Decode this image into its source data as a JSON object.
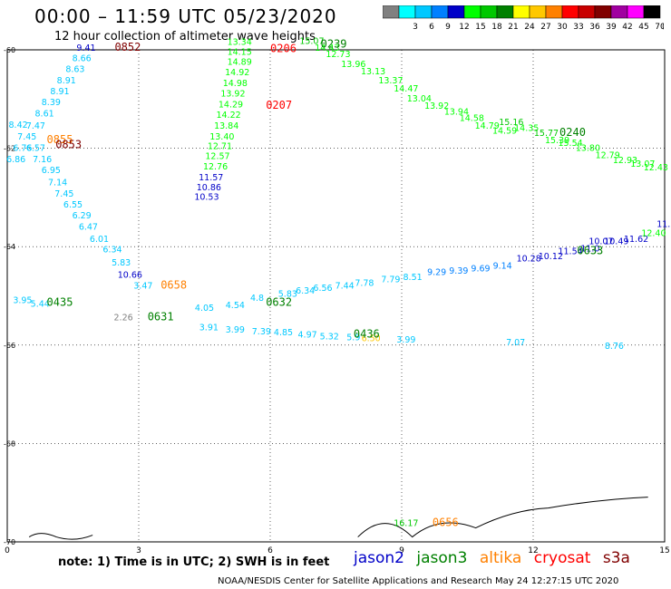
{
  "header": {
    "title": "00:00 – 11:59 UTC 05/23/2020",
    "subtitle": "12 hour collection of altimeter wave heights"
  },
  "legend": {
    "unit": "(ft)",
    "bins": [
      {
        "label": "",
        "color": "#808080"
      },
      {
        "label": "3",
        "color": "#00ffff"
      },
      {
        "label": "6",
        "color": "#00c8ff"
      },
      {
        "label": "9",
        "color": "#0080ff"
      },
      {
        "label": "12",
        "color": "#0000c8"
      },
      {
        "label": "15",
        "color": "#00ff00"
      },
      {
        "label": "18",
        "color": "#00c800"
      },
      {
        "label": "21",
        "color": "#008000"
      },
      {
        "label": "24",
        "color": "#ffff00"
      },
      {
        "label": "27",
        "color": "#ffc800"
      },
      {
        "label": "30",
        "color": "#ff8000"
      },
      {
        "label": "33",
        "color": "#ff0000"
      },
      {
        "label": "36",
        "color": "#c80000"
      },
      {
        "label": "39",
        "color": "#800000"
      },
      {
        "label": "42",
        "color": "#a000a0"
      },
      {
        "label": "45",
        "color": "#ff00ff"
      },
      {
        "label": "70",
        "color": "#000000"
      }
    ]
  },
  "footer": {
    "note": "note: 1) Time is in UTC; 2) SWH is in feet",
    "satellites": [
      {
        "name": "jason2",
        "color": "#0000c8"
      },
      {
        "name": "jason3",
        "color": "#008000"
      },
      {
        "name": "altika",
        "color": "#ff8000"
      },
      {
        "name": "cryosat",
        "color": "#ff0000"
      },
      {
        "name": "s3a",
        "color": "#800000"
      }
    ],
    "credit": "NOAA/NESDIS Center for Satellite Applications and Research    May 24 12:27:15 UTC 2020"
  },
  "chart_data": {
    "type": "scatter",
    "xlabel": "",
    "ylabel": "",
    "xlim": [
      0,
      15
    ],
    "ylim": [
      -70,
      -60
    ],
    "x_ticks": [
      "0",
      "3",
      "6",
      "9",
      "12",
      "15"
    ],
    "y_ticks": [
      "-60",
      "-62",
      "-64",
      "-66",
      "-68",
      "-70"
    ],
    "grid": true,
    "points": [
      {
        "x": 1.8,
        "y": -60.02,
        "t": "9.41",
        "c": "#0000c8"
      },
      {
        "x": 1.7,
        "y": -60.23,
        "t": "8.66",
        "c": "#00c8ff"
      },
      {
        "x": 1.55,
        "y": -60.45,
        "t": "8.63",
        "c": "#00c8ff"
      },
      {
        "x": 1.35,
        "y": -60.68,
        "t": "8.91",
        "c": "#00c8ff"
      },
      {
        "x": 1.2,
        "y": -60.9,
        "t": "8.91",
        "c": "#00c8ff"
      },
      {
        "x": 1.0,
        "y": -61.12,
        "t": "8.39",
        "c": "#00c8ff"
      },
      {
        "x": 0.85,
        "y": -61.35,
        "t": "8.61",
        "c": "#00c8ff"
      },
      {
        "x": 0.25,
        "y": -61.58,
        "t": "8.42",
        "c": "#00c8ff"
      },
      {
        "x": 0.65,
        "y": -61.6,
        "t": "7.47",
        "c": "#00c8ff"
      },
      {
        "x": 0.45,
        "y": -61.82,
        "t": "7.45",
        "c": "#00c8ff"
      },
      {
        "x": 0.35,
        "y": -62.05,
        "t": "6.76",
        "c": "#00c8ff"
      },
      {
        "x": 0.65,
        "y": -62.05,
        "t": "6.57",
        "c": "#00c8ff"
      },
      {
        "x": 0.2,
        "y": -62.28,
        "t": "6.86",
        "c": "#00c8ff"
      },
      {
        "x": 0.8,
        "y": -62.28,
        "t": "7.16",
        "c": "#00c8ff"
      },
      {
        "x": 1.0,
        "y": -62.5,
        "t": "6.95",
        "c": "#00c8ff"
      },
      {
        "x": 1.15,
        "y": -62.75,
        "t": "7.14",
        "c": "#00c8ff"
      },
      {
        "x": 1.3,
        "y": -62.98,
        "t": "7.45",
        "c": "#00c8ff"
      },
      {
        "x": 1.5,
        "y": -63.2,
        "t": "6.55",
        "c": "#00c8ff"
      },
      {
        "x": 1.7,
        "y": -63.43,
        "t": "6.29",
        "c": "#00c8ff"
      },
      {
        "x": 1.85,
        "y": -63.66,
        "t": "6.47",
        "c": "#00c8ff"
      },
      {
        "x": 2.1,
        "y": -63.9,
        "t": "6.01",
        "c": "#00c8ff"
      },
      {
        "x": 2.4,
        "y": -64.12,
        "t": "6.34",
        "c": "#00c8ff"
      },
      {
        "x": 2.6,
        "y": -64.38,
        "t": "5.83",
        "c": "#00c8ff"
      },
      {
        "x": 2.8,
        "y": -64.63,
        "t": "10.66",
        "c": "#0000c8"
      },
      {
        "x": 3.1,
        "y": -64.85,
        "t": "3.47",
        "c": "#00c8ff"
      },
      {
        "x": 0.35,
        "y": -65.15,
        "t": "3.95",
        "c": "#00c8ff"
      },
      {
        "x": 0.75,
        "y": -65.22,
        "t": "5.44",
        "c": "#00c8ff"
      },
      {
        "x": 2.65,
        "y": -65.5,
        "t": "2.26",
        "c": "#808080"
      },
      {
        "x": 4.5,
        "y": -65.3,
        "t": "4.05",
        "c": "#00c8ff"
      },
      {
        "x": 5.2,
        "y": -65.25,
        "t": "4.54",
        "c": "#00c8ff"
      },
      {
        "x": 5.7,
        "y": -65.1,
        "t": "4.8",
        "c": "#00c8ff"
      },
      {
        "x": 6.4,
        "y": -65.02,
        "t": "5.83",
        "c": "#00c8ff"
      },
      {
        "x": 6.8,
        "y": -64.95,
        "t": "6.34",
        "c": "#00c8ff"
      },
      {
        "x": 7.2,
        "y": -64.9,
        "t": "6.56",
        "c": "#00c8ff"
      },
      {
        "x": 7.7,
        "y": -64.85,
        "t": "7.44",
        "c": "#00c8ff"
      },
      {
        "x": 8.15,
        "y": -64.8,
        "t": "7.78",
        "c": "#00c8ff"
      },
      {
        "x": 8.75,
        "y": -64.72,
        "t": "7.79",
        "c": "#00c8ff"
      },
      {
        "x": 9.25,
        "y": -64.68,
        "t": "8.51",
        "c": "#00c8ff"
      },
      {
        "x": 9.8,
        "y": -64.58,
        "t": "9.29",
        "c": "#0080ff"
      },
      {
        "x": 10.3,
        "y": -64.55,
        "t": "9.39",
        "c": "#0080ff"
      },
      {
        "x": 10.8,
        "y": -64.5,
        "t": "9.69",
        "c": "#0080ff"
      },
      {
        "x": 11.3,
        "y": -64.45,
        "t": "9.14",
        "c": "#0080ff"
      },
      {
        "x": 11.9,
        "y": -64.3,
        "t": "10.28",
        "c": "#0000c8"
      },
      {
        "x": 12.4,
        "y": -64.25,
        "t": "10.12",
        "c": "#0000c8"
      },
      {
        "x": 12.85,
        "y": -64.15,
        "t": "11.54",
        "c": "#0000c8"
      },
      {
        "x": 13.3,
        "y": -64.1,
        "t": "11.0",
        "c": "#0000c8"
      },
      {
        "x": 13.55,
        "y": -63.95,
        "t": "10.07",
        "c": "#0000c8"
      },
      {
        "x": 13.9,
        "y": -63.95,
        "t": "10.49",
        "c": "#0000c8"
      },
      {
        "x": 14.35,
        "y": -63.9,
        "t": "11.62",
        "c": "#0000c8"
      },
      {
        "x": 14.75,
        "y": -63.78,
        "t": "12.40",
        "c": "#00ff00"
      },
      {
        "x": 15.1,
        "y": -63.6,
        "t": "11.77",
        "c": "#0000c8"
      },
      {
        "x": 4.6,
        "y": -65.7,
        "t": "3.91",
        "c": "#00c8ff"
      },
      {
        "x": 5.2,
        "y": -65.75,
        "t": "3.99",
        "c": "#00c8ff"
      },
      {
        "x": 5.8,
        "y": -65.78,
        "t": "7.39",
        "c": "#00c8ff"
      },
      {
        "x": 6.3,
        "y": -65.8,
        "t": "4.85",
        "c": "#00c8ff"
      },
      {
        "x": 6.85,
        "y": -65.85,
        "t": "4.97",
        "c": "#00c8ff"
      },
      {
        "x": 7.35,
        "y": -65.88,
        "t": "5.32",
        "c": "#00c8ff"
      },
      {
        "x": 7.9,
        "y": -65.9,
        "t": "5.9",
        "c": "#00c8ff"
      },
      {
        "x": 8.3,
        "y": -65.92,
        "t": "6.50",
        "c": "#ffc800"
      },
      {
        "x": 9.1,
        "y": -65.95,
        "t": "3.99",
        "c": "#00c8ff"
      },
      {
        "x": 11.6,
        "y": -66.0,
        "t": "7.07",
        "c": "#00c8ff"
      },
      {
        "x": 13.85,
        "y": -66.08,
        "t": "8.76",
        "c": "#00c8ff"
      },
      {
        "x": 4.55,
        "y": -63.05,
        "t": "10.53",
        "c": "#0000c8"
      },
      {
        "x": 4.6,
        "y": -62.85,
        "t": "10.86",
        "c": "#0000c8"
      },
      {
        "x": 4.65,
        "y": -62.65,
        "t": "11.57",
        "c": "#0000c8"
      },
      {
        "x": 4.75,
        "y": -62.43,
        "t": "12.76",
        "c": "#00ff00"
      },
      {
        "x": 4.8,
        "y": -62.22,
        "t": "12.57",
        "c": "#00ff00"
      },
      {
        "x": 4.85,
        "y": -62.02,
        "t": "12.71",
        "c": "#00ff00"
      },
      {
        "x": 4.9,
        "y": -61.82,
        "t": "13.40",
        "c": "#00ff00"
      },
      {
        "x": 5.0,
        "y": -61.6,
        "t": "13.84",
        "c": "#00ff00"
      },
      {
        "x": 5.05,
        "y": -61.38,
        "t": "14.22",
        "c": "#00ff00"
      },
      {
        "x": 5.1,
        "y": -61.17,
        "t": "14.29",
        "c": "#00ff00"
      },
      {
        "x": 5.15,
        "y": -60.95,
        "t": "13.92",
        "c": "#00ff00"
      },
      {
        "x": 5.2,
        "y": -60.74,
        "t": "14.98",
        "c": "#00ff00"
      },
      {
        "x": 5.25,
        "y": -60.52,
        "t": "14.92",
        "c": "#00ff00"
      },
      {
        "x": 5.3,
        "y": -60.3,
        "t": "14.89",
        "c": "#00ff00"
      },
      {
        "x": 5.3,
        "y": -60.1,
        "t": "14.15",
        "c": "#00ff00"
      },
      {
        "x": 5.3,
        "y": -59.9,
        "t": "13.34",
        "c": "#00ff00"
      },
      {
        "x": 6.95,
        "y": -59.88,
        "t": "15.07",
        "c": "#00c800"
      },
      {
        "x": 7.3,
        "y": -60.02,
        "t": "14.43",
        "c": "#00ff00"
      },
      {
        "x": 7.55,
        "y": -60.15,
        "t": "12.73",
        "c": "#00ff00"
      },
      {
        "x": 7.9,
        "y": -60.35,
        "t": "13.96",
        "c": "#00ff00"
      },
      {
        "x": 8.35,
        "y": -60.5,
        "t": "13.13",
        "c": "#00ff00"
      },
      {
        "x": 8.75,
        "y": -60.68,
        "t": "13.37",
        "c": "#00ff00"
      },
      {
        "x": 9.1,
        "y": -60.85,
        "t": "14.47",
        "c": "#00ff00"
      },
      {
        "x": 9.4,
        "y": -61.05,
        "t": "13.04",
        "c": "#00ff00"
      },
      {
        "x": 9.8,
        "y": -61.2,
        "t": "13.92",
        "c": "#00ff00"
      },
      {
        "x": 10.25,
        "y": -61.32,
        "t": "13.94",
        "c": "#00ff00"
      },
      {
        "x": 10.6,
        "y": -61.45,
        "t": "14.58",
        "c": "#00ff00"
      },
      {
        "x": 10.95,
        "y": -61.6,
        "t": "14.79",
        "c": "#00ff00"
      },
      {
        "x": 11.35,
        "y": -61.7,
        "t": "14.59",
        "c": "#00ff00"
      },
      {
        "x": 11.5,
        "y": -61.53,
        "t": "15.16",
        "c": "#00c800"
      },
      {
        "x": 11.85,
        "y": -61.65,
        "t": "14.35",
        "c": "#00ff00"
      },
      {
        "x": 12.3,
        "y": -61.75,
        "t": "15.77",
        "c": "#00c800"
      },
      {
        "x": 12.55,
        "y": -61.9,
        "t": "15.39",
        "c": "#00ff00"
      },
      {
        "x": 12.85,
        "y": -61.95,
        "t": "15.54",
        "c": "#00ff00"
      },
      {
        "x": 13.25,
        "y": -62.05,
        "t": "13.80",
        "c": "#00ff00"
      },
      {
        "x": 13.7,
        "y": -62.2,
        "t": "12.79",
        "c": "#00ff00"
      },
      {
        "x": 14.1,
        "y": -62.3,
        "t": "12.93",
        "c": "#00ff00"
      },
      {
        "x": 14.5,
        "y": -62.38,
        "t": "13.07",
        "c": "#00ff00"
      },
      {
        "x": 14.8,
        "y": -62.45,
        "t": "12.43",
        "c": "#00ff00"
      },
      {
        "x": 9.1,
        "y": -69.68,
        "t": "16.17",
        "c": "#00c800"
      }
    ],
    "pass_times": [
      {
        "x": 2.75,
        "y": -60.02,
        "t": "0852",
        "c": "#800000"
      },
      {
        "x": 6.3,
        "y": -60.05,
        "t": "0206",
        "c": "#ff0000"
      },
      {
        "x": 7.45,
        "y": -59.95,
        "t": "0239",
        "c": "#008000"
      },
      {
        "x": 6.2,
        "y": -61.2,
        "t": "0207",
        "c": "#ff0000"
      },
      {
        "x": 1.2,
        "y": -61.9,
        "t": "0855",
        "c": "#ff8000"
      },
      {
        "x": 1.4,
        "y": -62.0,
        "t": "0853",
        "c": "#800000"
      },
      {
        "x": 12.9,
        "y": -61.75,
        "t": "0240",
        "c": "#008000"
      },
      {
        "x": 1.2,
        "y": -65.2,
        "t": "0435",
        "c": "#008000"
      },
      {
        "x": 3.8,
        "y": -64.85,
        "t": "0658",
        "c": "#ff8000"
      },
      {
        "x": 3.5,
        "y": -65.5,
        "t": "0631",
        "c": "#008000"
      },
      {
        "x": 6.2,
        "y": -65.2,
        "t": "0632",
        "c": "#008000"
      },
      {
        "x": 13.3,
        "y": -64.15,
        "t": "0633",
        "c": "#008000"
      },
      {
        "x": 8.2,
        "y": -65.85,
        "t": "0436",
        "c": "#008000"
      },
      {
        "x": 10.0,
        "y": -69.68,
        "t": "0656",
        "c": "#ff8000"
      }
    ]
  }
}
